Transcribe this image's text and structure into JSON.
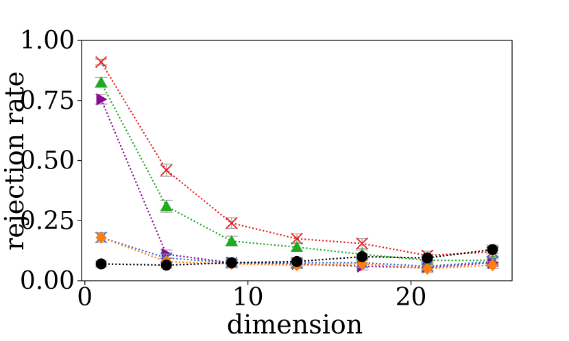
{
  "chart_data": {
    "type": "line",
    "title": "",
    "xlabel": "dimension",
    "ylabel": "rejection rate",
    "xlim": [
      -0.2,
      26.2
    ],
    "ylim": [
      0.0,
      1.0
    ],
    "x": [
      1,
      5,
      9,
      13,
      17,
      21,
      25
    ],
    "xticks": [
      0,
      10,
      20
    ],
    "xtick_labels": [
      "0",
      "10",
      "20"
    ],
    "yticks": [
      0.0,
      0.25,
      0.5,
      0.75,
      1.0
    ],
    "ytick_labels": [
      "0.00",
      "0.25",
      "0.50",
      "0.75",
      "1.00"
    ],
    "grid": false,
    "legend": "none",
    "series": [
      {
        "name": "red",
        "color": "#e8191a",
        "marker": "x",
        "values": [
          0.91,
          0.46,
          0.24,
          0.175,
          0.155,
          0.105,
          0.12
        ],
        "errors": [
          0.012,
          0.025,
          0.022,
          0.02,
          0.02,
          0.018,
          0.018
        ]
      },
      {
        "name": "green",
        "color": "#1faa1f",
        "marker": "triangle",
        "values": [
          0.825,
          0.31,
          0.165,
          0.14,
          0.11,
          0.085,
          0.085
        ],
        "errors": [
          0.02,
          0.025,
          0.02,
          0.018,
          0.018,
          0.015,
          0.015
        ]
      },
      {
        "name": "purple",
        "color": "#8a0a96",
        "marker": "triangle-right",
        "values": [
          0.755,
          0.11,
          0.075,
          0.07,
          0.06,
          0.055,
          0.075
        ],
        "errors": [
          0.02,
          0.018,
          0.015,
          0.015,
          0.015,
          0.015,
          0.015
        ]
      },
      {
        "name": "blue",
        "color": "#2a6fd6",
        "marker": "x",
        "values": [
          0.18,
          0.095,
          0.075,
          0.075,
          0.075,
          0.06,
          0.08
        ],
        "errors": [
          0.02,
          0.016,
          0.015,
          0.015,
          0.015,
          0.015,
          0.015
        ]
      },
      {
        "name": "orange",
        "color": "#ff7f0e",
        "marker": "diamond",
        "values": [
          0.18,
          0.08,
          0.07,
          0.065,
          0.07,
          0.05,
          0.065
        ],
        "errors": [
          0.02,
          0.015,
          0.015,
          0.015,
          0.015,
          0.015,
          0.015
        ]
      },
      {
        "name": "black",
        "color": "#000000",
        "marker": "circle",
        "values": [
          0.07,
          0.065,
          0.075,
          0.08,
          0.1,
          0.095,
          0.13
        ],
        "errors": [
          0.012,
          0.012,
          0.012,
          0.013,
          0.015,
          0.015,
          0.018
        ]
      }
    ]
  }
}
